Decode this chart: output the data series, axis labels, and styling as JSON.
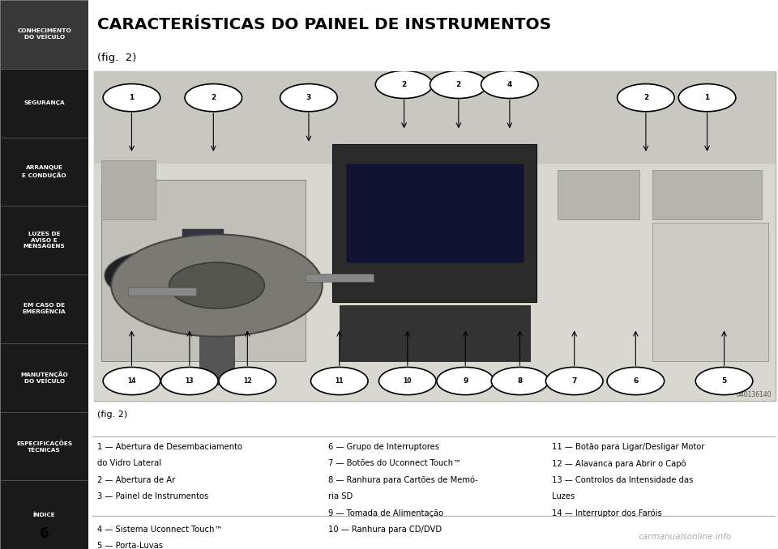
{
  "title": "CARACTERÍSTICAS DO PAINEL DE INSTRUMENTOS",
  "subtitle": "(fig.  2)",
  "fig_label": "(fig. 2)",
  "sidebar_items": [
    "CONHECIMENTO\nDO VEÍCULO",
    "SEGURANÇA",
    "ARRANQUE\nE CONDUÇÃO",
    "LUZES DE\nAVISO E\nMENSAGENS",
    "EM CASO DE\nEMERGÊNCIA",
    "MANUTENÇÃO\nDO VEÍCULO",
    "ESPECIFICAÇÕES\nTÉCNICAS",
    "ÍNDICE"
  ],
  "sidebar_active": 0,
  "page_number": "6",
  "watermark": "carmanualsonline.info",
  "ref_code": "040136140",
  "col1_lines": [
    "1 — Abertura de Desembaciamento",
    "do Vidro Lateral",
    "2 — Abertura de Ar",
    "3 — Painel de Instrumentos",
    "",
    "4 — Sistema Uconnect Touch™",
    "5 — Porta-Luvas"
  ],
  "col2_lines": [
    "6 — Grupo de Interruptores",
    "7 — Botões do Uconnect Touch™",
    "8 — Ranhura para Cartões de Memó-",
    "ria SD",
    "9 — Tomada de Alimentação",
    "10 — Ranhura para CD/DVD"
  ],
  "col3_lines": [
    "11 — Botão para Ligar/Desligar Motor",
    "12 — Alavanca para Abrir o Capô",
    "13 — Controlos da Intensidade das",
    "Luzes",
    "14 — Interruptor dos Faróis"
  ],
  "bg_color": "#ffffff",
  "sidebar_bg": "#1a1a1a",
  "sidebar_active_bg": "#383838",
  "sidebar_text_color": "#ffffff",
  "title_color": "#000000",
  "body_text_color": "#000000"
}
